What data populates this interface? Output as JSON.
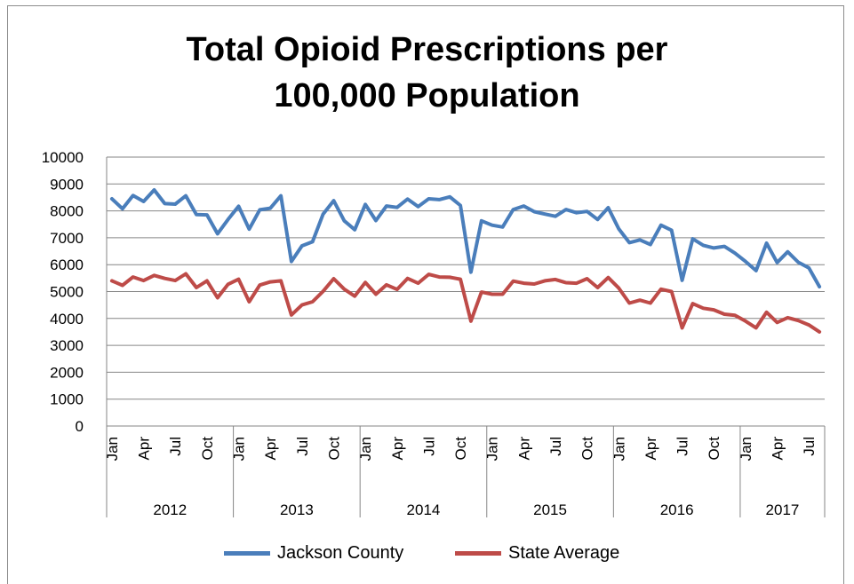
{
  "chart_data": {
    "type": "line",
    "title_lines": [
      "Total Opioid Prescriptions per",
      "100,000 Population"
    ],
    "ylim": [
      0,
      10000
    ],
    "yticks": [
      0,
      1000,
      2000,
      3000,
      4000,
      5000,
      6000,
      7000,
      8000,
      9000,
      10000
    ],
    "grid": true,
    "legend_position": "bottom",
    "month_labels": [
      "Jan",
      "Apr",
      "Jul",
      "Oct"
    ],
    "years": [
      "2012",
      "2013",
      "2014",
      "2015",
      "2016",
      "2017"
    ],
    "months_in_year": [
      12,
      12,
      12,
      12,
      12,
      8
    ],
    "series": [
      {
        "name": "Jackson County",
        "color": "#4a7ebb",
        "values": [
          8450,
          8080,
          8570,
          8350,
          8780,
          8270,
          8250,
          8560,
          7860,
          7850,
          7150,
          7680,
          8170,
          7320,
          8040,
          8100,
          8560,
          6120,
          6700,
          6850,
          7880,
          8380,
          7630,
          7300,
          8240,
          7640,
          8180,
          8130,
          8440,
          8160,
          8450,
          8420,
          8520,
          8200,
          5720,
          7630,
          7470,
          7400,
          8050,
          8180,
          7970,
          7880,
          7800,
          8050,
          7930,
          7980,
          7680,
          8120,
          7330,
          6820,
          6920,
          6750,
          7470,
          7280,
          5420,
          6960,
          6720,
          6620,
          6680,
          6430,
          6120,
          5780,
          6800,
          6080,
          6480,
          6090,
          5880,
          5180
        ]
      },
      {
        "name": "State Average",
        "color": "#be4b48",
        "values": [
          5400,
          5230,
          5540,
          5410,
          5600,
          5490,
          5410,
          5660,
          5150,
          5400,
          4770,
          5270,
          5460,
          4620,
          5240,
          5360,
          5400,
          4130,
          4500,
          4620,
          5010,
          5480,
          5090,
          4830,
          5340,
          4900,
          5250,
          5080,
          5490,
          5310,
          5640,
          5540,
          5530,
          5460,
          3900,
          4980,
          4900,
          4900,
          5390,
          5310,
          5280,
          5400,
          5450,
          5330,
          5310,
          5480,
          5150,
          5520,
          5130,
          4570,
          4680,
          4570,
          5090,
          5000,
          3650,
          4550,
          4380,
          4320,
          4160,
          4120,
          3900,
          3650,
          4230,
          3850,
          4030,
          3920,
          3760,
          3500
        ]
      }
    ]
  }
}
